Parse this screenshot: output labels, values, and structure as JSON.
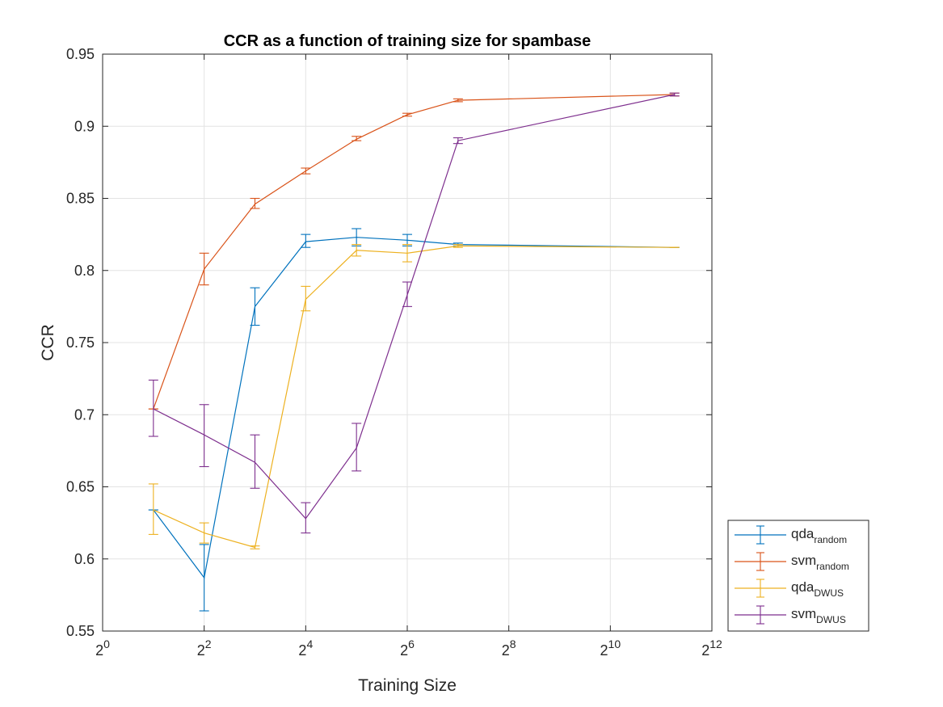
{
  "chart_data": {
    "type": "line",
    "title": "CCR as a function of training size for spambase",
    "xlabel": "Training Size",
    "ylabel": "CCR",
    "x_scale": "log2",
    "xlim": [
      1,
      4096
    ],
    "ylim": [
      0.55,
      0.95
    ],
    "x_ticks": [
      {
        "value": 1,
        "base": "2",
        "exp": "0"
      },
      {
        "value": 4,
        "base": "2",
        "exp": "2"
      },
      {
        "value": 16,
        "base": "2",
        "exp": "4"
      },
      {
        "value": 64,
        "base": "2",
        "exp": "6"
      },
      {
        "value": 256,
        "base": "2",
        "exp": "8"
      },
      {
        "value": 1024,
        "base": "2",
        "exp": "10"
      },
      {
        "value": 4096,
        "base": "2",
        "exp": "12"
      }
    ],
    "y_ticks": [
      "0.55",
      "0.6",
      "0.65",
      "0.7",
      "0.75",
      "0.8",
      "0.85",
      "0.9",
      "0.95"
    ],
    "grid": true,
    "legend_position": "outside-bottom-right",
    "series": [
      {
        "name": "qda",
        "sub": "random",
        "color": "#0072BD",
        "points": [
          {
            "x": 2,
            "y": 0.634,
            "lo": 0.634,
            "hi": 0.634
          },
          {
            "x": 4,
            "y": 0.587,
            "lo": 0.564,
            "hi": 0.61
          },
          {
            "x": 8,
            "y": 0.775,
            "lo": 0.762,
            "hi": 0.788
          },
          {
            "x": 16,
            "y": 0.82,
            "lo": 0.816,
            "hi": 0.825
          },
          {
            "x": 32,
            "y": 0.823,
            "lo": 0.817,
            "hi": 0.829
          },
          {
            "x": 64,
            "y": 0.821,
            "lo": 0.817,
            "hi": 0.825
          },
          {
            "x": 128,
            "y": 0.818,
            "lo": 0.817,
            "hi": 0.819
          },
          {
            "x": 2458,
            "y": 0.816,
            "lo": 0.816,
            "hi": 0.816
          }
        ]
      },
      {
        "name": "svm",
        "sub": "random",
        "color": "#D95319",
        "points": [
          {
            "x": 2,
            "y": 0.704,
            "lo": 0.704,
            "hi": 0.704
          },
          {
            "x": 4,
            "y": 0.801,
            "lo": 0.79,
            "hi": 0.812
          },
          {
            "x": 8,
            "y": 0.846,
            "lo": 0.843,
            "hi": 0.85
          },
          {
            "x": 16,
            "y": 0.869,
            "lo": 0.867,
            "hi": 0.871
          },
          {
            "x": 32,
            "y": 0.891,
            "lo": 0.89,
            "hi": 0.893
          },
          {
            "x": 64,
            "y": 0.908,
            "lo": 0.907,
            "hi": 0.909
          },
          {
            "x": 128,
            "y": 0.918,
            "lo": 0.917,
            "hi": 0.919
          },
          {
            "x": 2458,
            "y": 0.922,
            "lo": 0.921,
            "hi": 0.923
          }
        ]
      },
      {
        "name": "qda",
        "sub": "DWUS",
        "color": "#EDB120",
        "points": [
          {
            "x": 2,
            "y": 0.634,
            "lo": 0.617,
            "hi": 0.652
          },
          {
            "x": 4,
            "y": 0.618,
            "lo": 0.611,
            "hi": 0.625
          },
          {
            "x": 8,
            "y": 0.608,
            "lo": 0.607,
            "hi": 0.609
          },
          {
            "x": 16,
            "y": 0.78,
            "lo": 0.772,
            "hi": 0.789
          },
          {
            "x": 32,
            "y": 0.814,
            "lo": 0.81,
            "hi": 0.818
          },
          {
            "x": 64,
            "y": 0.812,
            "lo": 0.806,
            "hi": 0.818
          },
          {
            "x": 128,
            "y": 0.817,
            "lo": 0.816,
            "hi": 0.818
          },
          {
            "x": 2458,
            "y": 0.816,
            "lo": 0.816,
            "hi": 0.816
          }
        ]
      },
      {
        "name": "svm",
        "sub": "DWUS",
        "color": "#7E2F8E",
        "points": [
          {
            "x": 2,
            "y": 0.704,
            "lo": 0.685,
            "hi": 0.724
          },
          {
            "x": 4,
            "y": 0.686,
            "lo": 0.664,
            "hi": 0.707
          },
          {
            "x": 8,
            "y": 0.667,
            "lo": 0.649,
            "hi": 0.686
          },
          {
            "x": 16,
            "y": 0.628,
            "lo": 0.618,
            "hi": 0.639
          },
          {
            "x": 32,
            "y": 0.677,
            "lo": 0.661,
            "hi": 0.694
          },
          {
            "x": 64,
            "y": 0.783,
            "lo": 0.775,
            "hi": 0.792
          },
          {
            "x": 128,
            "y": 0.89,
            "lo": 0.888,
            "hi": 0.892
          },
          {
            "x": 2458,
            "y": 0.922,
            "lo": 0.921,
            "hi": 0.923
          }
        ]
      }
    ]
  }
}
